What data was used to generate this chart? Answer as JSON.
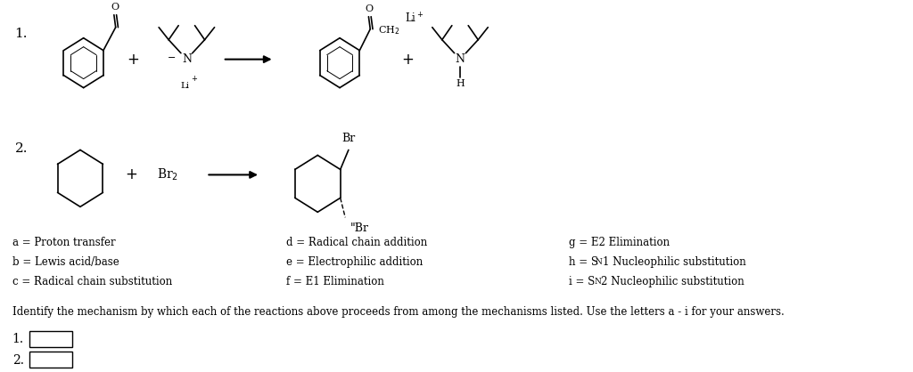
{
  "bg_color": "#ffffff",
  "text_color": "#000000",
  "figsize": [
    10.24,
    4.18
  ],
  "dpi": 100,
  "mechanisms_left": [
    [
      "a",
      "Proton transfer"
    ],
    [
      "b",
      "Lewis acid/base"
    ],
    [
      "c",
      "Radical chain substitution"
    ]
  ],
  "mechanisms_mid": [
    [
      "d",
      "Radical chain addition"
    ],
    [
      "e",
      "Electrophilic addition"
    ],
    [
      "f",
      "E1 Elimination"
    ]
  ],
  "mechanisms_right": [
    [
      "g",
      "E2 Elimination"
    ],
    [
      "h",
      "S",
      "N",
      "1 Nucleophilic substitution"
    ],
    [
      "i",
      "S",
      "N",
      "2 Nucleophilic substitution"
    ]
  ],
  "question_text": "Identify the mechanism by which each of the reactions above proceeds from among the mechanisms listed. Use the letters a - i for your answers.",
  "answer_label1": "1.",
  "answer_label2": "2."
}
